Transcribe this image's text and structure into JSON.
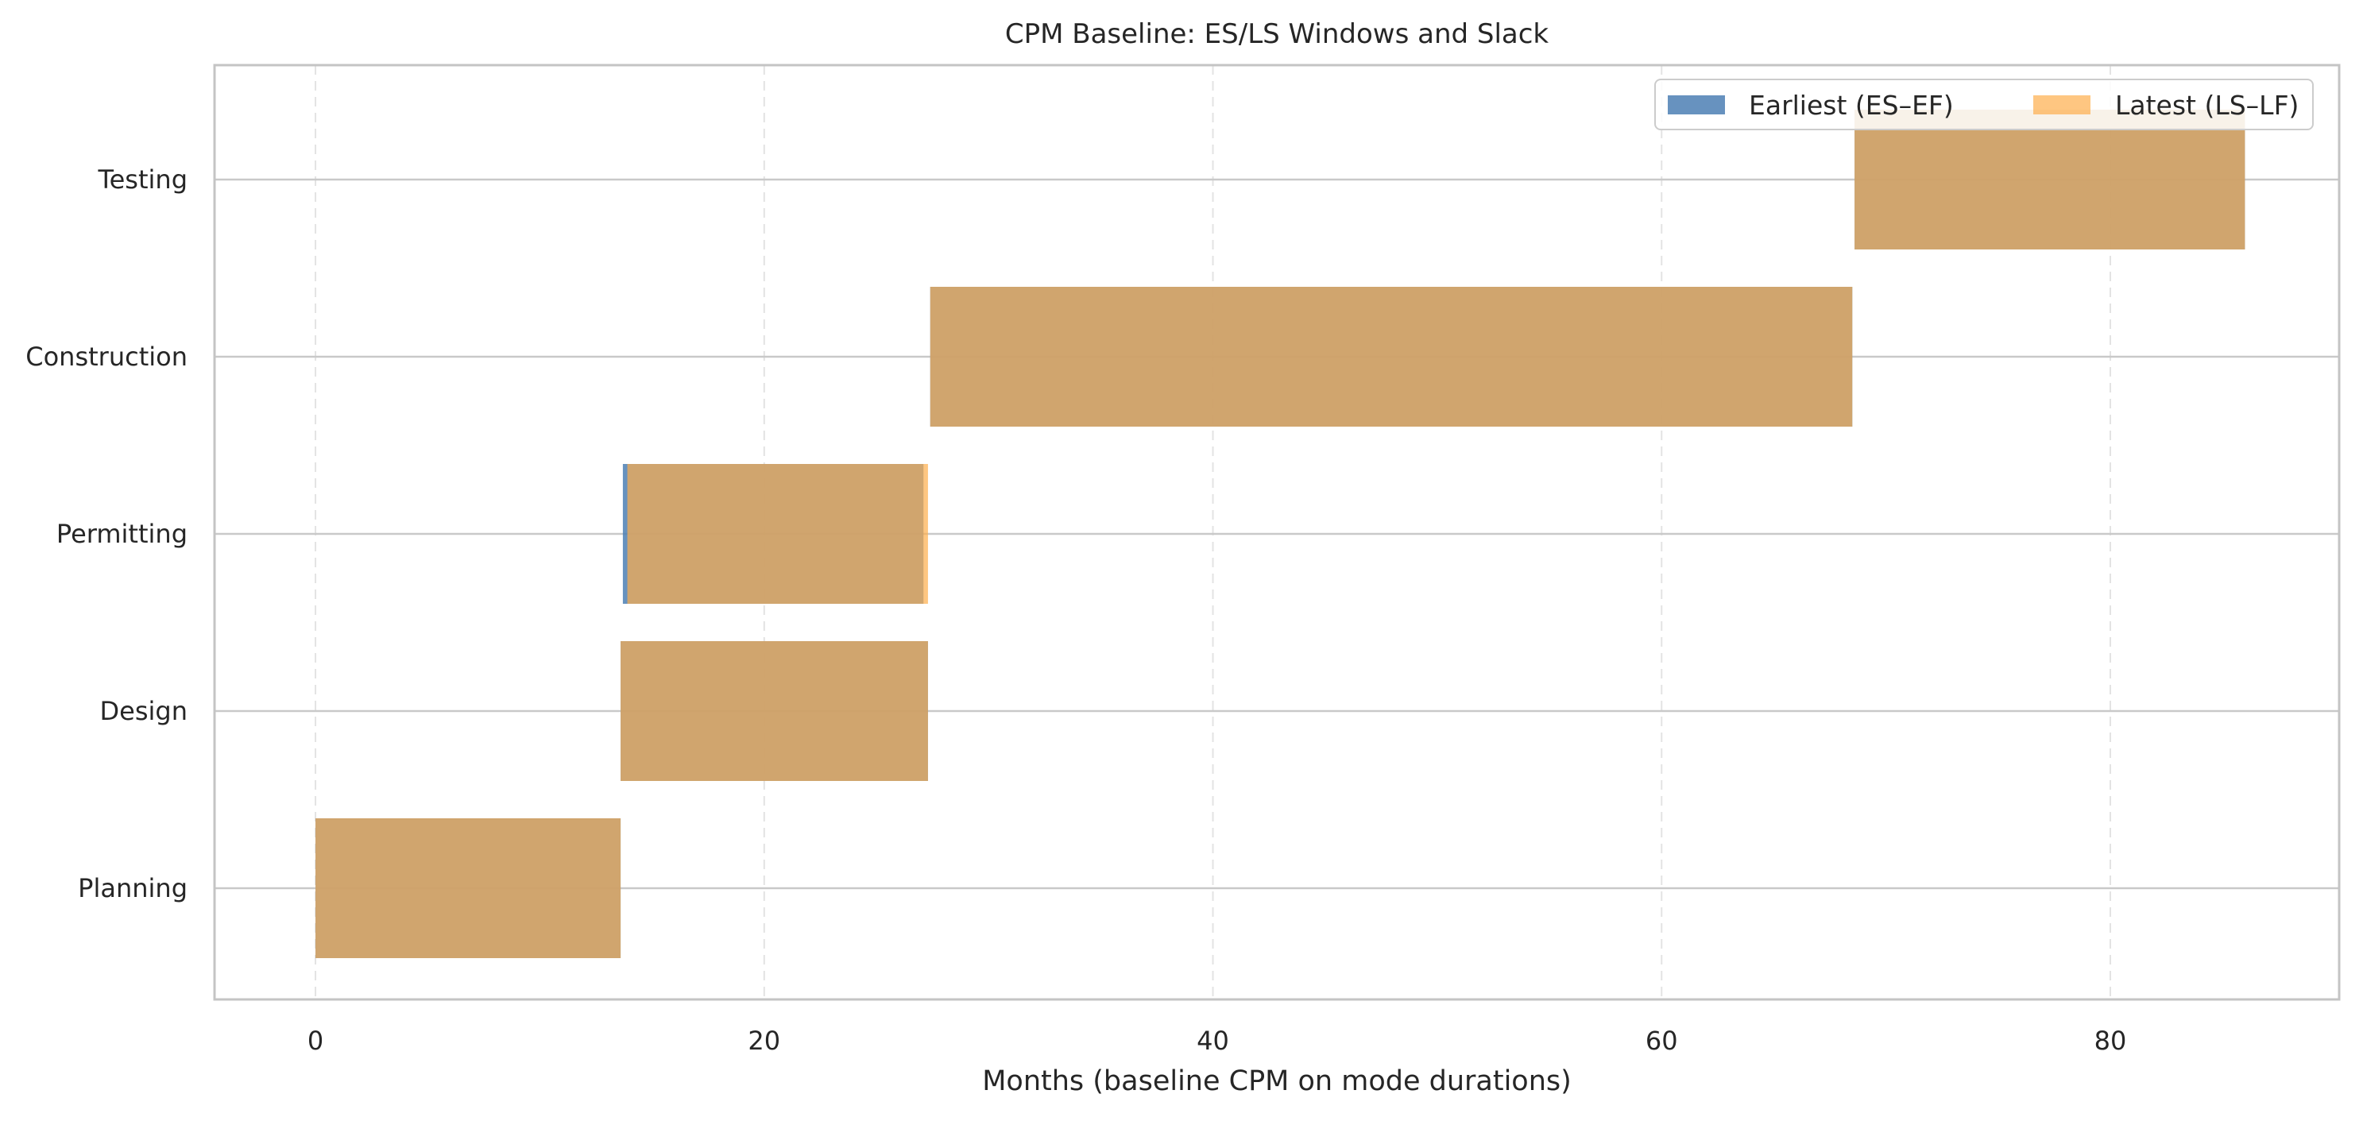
{
  "chart_data": {
    "type": "bar",
    "orientation": "horizontal",
    "title": "CPM Baseline: ES/LS Windows and Slack",
    "xlabel": "Months (baseline CPM on mode durations)",
    "ylabel": "",
    "xlim": [
      -4.5,
      90.2
    ],
    "x_ticks": [
      0,
      20,
      40,
      60,
      80
    ],
    "categories": [
      "Planning",
      "Design",
      "Permitting",
      "Construction",
      "Testing"
    ],
    "series": [
      {
        "name": "Earliest (ES–EF)",
        "color": "#4c7fb4",
        "bars": [
          {
            "start": 0.0,
            "end": 13.6
          },
          {
            "start": 13.6,
            "end": 27.3
          },
          {
            "start": 13.7,
            "end": 27.1
          },
          {
            "start": 27.4,
            "end": 68.5
          },
          {
            "start": 68.6,
            "end": 86.0
          }
        ]
      },
      {
        "name": "Latest (LS–LF)",
        "color": "#fdae4b",
        "bars": [
          {
            "start": 0.0,
            "end": 13.6
          },
          {
            "start": 13.6,
            "end": 27.3
          },
          {
            "start": 13.9,
            "end": 27.3
          },
          {
            "start": 27.4,
            "end": 68.5
          },
          {
            "start": 68.6,
            "end": 86.0
          }
        ]
      }
    ],
    "grid": {
      "x": "dashed",
      "y": "solid"
    },
    "legend_position": "top-right"
  }
}
